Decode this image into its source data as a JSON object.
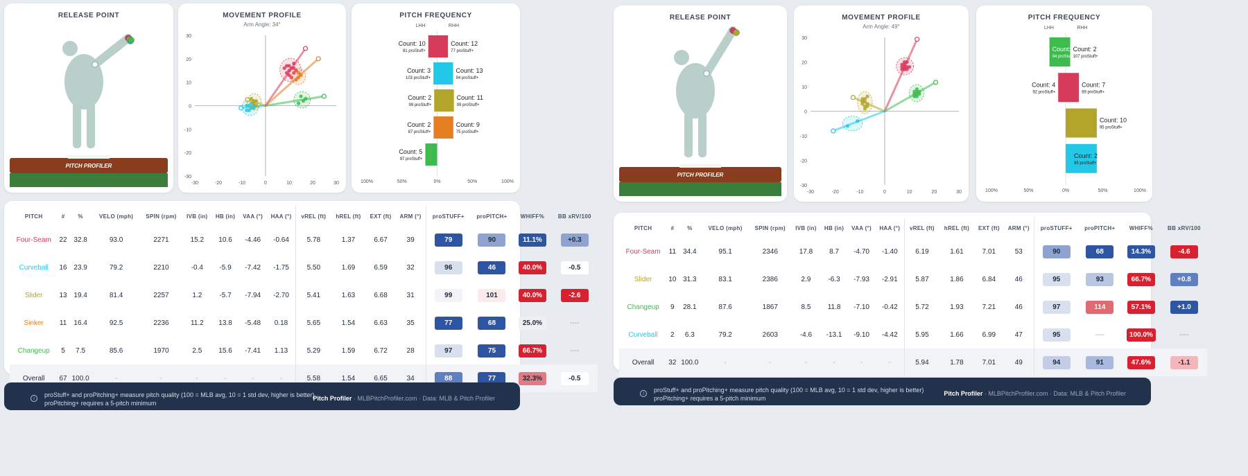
{
  "colors": {
    "Four-Seam": "#d63b5b",
    "Curveball": "#22c8e6",
    "Slider": "#b3a52a",
    "Sinker": "#e67e22",
    "Changeup": "#3dbb4f",
    "navy": "#22324d"
  },
  "panels": [
    {
      "release": {
        "title": "RELEASE POINT",
        "logo": "PITCH PROFILER"
      },
      "movement": {
        "title": "MOVEMENT PROFILE",
        "subtitle": "Arm Angle: 34°"
      },
      "frequency": {
        "title": "PITCH FREQUENCY",
        "lhh": "LHH",
        "rhh": "RHH"
      },
      "chart_data": [
        {
          "type": "scatter",
          "title": "MOVEMENT PROFILE",
          "subtitle": "Arm Angle: 34°",
          "xlim": [
            -30,
            30
          ],
          "ylim": [
            -30,
            30
          ],
          "x_ticks": [
            "-30",
            "-20",
            "-10",
            "0",
            "10",
            "20",
            "30"
          ],
          "y_ticks": [
            "30",
            "20",
            "10",
            "0",
            "-10",
            "-20",
            "-30"
          ],
          "series": [
            {
              "name": "Four-Seam",
              "points": [
                [
                  9,
                  17
                ],
                [
                  10,
                  15
                ],
                [
                  11,
                  16
                ],
                [
                  12,
                  14
                ],
                [
                  10,
                  13
                ],
                [
                  8,
                  16
                ],
                [
                  12,
                  18
                ],
                [
                  9,
                  14
                ],
                [
                  11,
                  12
                ],
                [
                  13,
                  15
                ],
                [
                  10,
                  17
                ],
                [
                  12,
                  16
                ]
              ]
            },
            {
              "name": "Curveball",
              "points": [
                [
                  -7,
                  0
                ],
                [
                  -6,
                  -1
                ],
                [
                  -8,
                  -2
                ],
                [
                  -5,
                  0
                ],
                [
                  -6,
                  1
                ],
                [
                  -7,
                  -2
                ],
                [
                  -5,
                  -1
                ],
                [
                  -8,
                  0
                ]
              ]
            },
            {
              "name": "Slider",
              "points": [
                [
                  -5,
                  1
                ],
                [
                  -4,
                  2
                ],
                [
                  -6,
                  3
                ],
                [
                  -4,
                  0
                ],
                [
                  -5,
                  2
                ]
              ]
            },
            {
              "name": "Sinker",
              "points": [
                [
                  14,
                  12
                ],
                [
                  15,
                  13
                ],
                [
                  13,
                  11
                ],
                [
                  14,
                  14
                ]
              ]
            },
            {
              "name": "Changeup",
              "points": [
                [
                  15,
                  4
                ],
                [
                  16,
                  2
                ],
                [
                  14,
                  1
                ],
                [
                  17,
                  3
                ]
              ]
            }
          ]
        },
        {
          "type": "bar",
          "title": "PITCH FREQUENCY",
          "x_ticks": [
            "100%",
            "50%",
            "0%",
            "50%",
            "100%"
          ],
          "pitches": [
            {
              "name": "Four-Seam",
              "lhh_pct": 45,
              "rhh_pct": 55,
              "lhh_count": "Count: 10",
              "rhh_count": "Count: 12",
              "lhh_stuff": "81 proStuff+",
              "rhh_stuff": "77 proStuff+"
            },
            {
              "name": "Curveball",
              "lhh_pct": 19,
              "rhh_pct": 81,
              "lhh_count": "Count: 3",
              "rhh_count": "Count: 13",
              "lhh_stuff": "103 proStuff+",
              "rhh_stuff": "94 proStuff+"
            },
            {
              "name": "Slider",
              "lhh_pct": 15,
              "rhh_pct": 85,
              "lhh_count": "Count: 2",
              "rhh_count": "Count: 11",
              "lhh_stuff": "99 proStuff+",
              "rhh_stuff": "99 proStuff+"
            },
            {
              "name": "Sinker",
              "lhh_pct": 18,
              "rhh_pct": 82,
              "lhh_count": "Count: 2",
              "rhh_count": "Count: 9",
              "lhh_stuff": "87 proStuff+",
              "rhh_stuff": "75 proStuff+"
            },
            {
              "name": "Changeup",
              "lhh_pct": 100,
              "rhh_pct": 0,
              "lhh_count": "Count: 5",
              "rhh_count": "",
              "lhh_stuff": "97 proStuff+",
              "rhh_stuff": ""
            }
          ]
        }
      ],
      "table": {
        "headers": [
          "PITCH",
          "#",
          "%",
          "VELO (mph)",
          "SPIN (rpm)",
          "IVB (in)",
          "HB (in)",
          "VAA (°)",
          "HAA (°)",
          "vREL (ft)",
          "hREL (ft)",
          "EXT (ft)",
          "ARM (°)",
          "proSTUFF+",
          "proPITCH+",
          "WHIFF%",
          "BB xRV/100"
        ],
        "rows": [
          {
            "name": "Four-Seam",
            "cells": [
              "22",
              "32.8",
              "93.0",
              "2271",
              "15.2",
              "10.6",
              "-4.46",
              "-0.64",
              "5.78",
              "1.37",
              "6.67",
              "39"
            ],
            "stuff": "79",
            "pitch": "90",
            "whiff": "11.1%",
            "bb": "+0.3",
            "stuff_bg": "#2d55a2",
            "pitch_bg": "#8ea3cf",
            "whiff_bg": "#2d55a2",
            "bb_bg": "#8ea3cf"
          },
          {
            "name": "Curveball",
            "cells": [
              "16",
              "23.9",
              "79.2",
              "2210",
              "-0.4",
              "-5.9",
              "-7.42",
              "-1.75",
              "5.50",
              "1.69",
              "6.59",
              "32"
            ],
            "stuff": "96",
            "pitch": "46",
            "whiff": "40.0%",
            "bb": "-0.5",
            "stuff_bg": "#d8dfee",
            "pitch_bg": "#2d55a2",
            "whiff_bg": "#d62230",
            "bb_bg": "#ffffff"
          },
          {
            "name": "Slider",
            "cells": [
              "13",
              "19.4",
              "81.4",
              "2257",
              "1.2",
              "-5.7",
              "-7.94",
              "-2.70",
              "5.41",
              "1.63",
              "6.68",
              "31"
            ],
            "stuff": "99",
            "pitch": "101",
            "whiff": "40.0%",
            "bb": "-2.6",
            "stuff_bg": "#f3f4f7",
            "pitch_bg": "#fbeceb",
            "whiff_bg": "#d62230",
            "bb_bg": "#d62230"
          },
          {
            "name": "Sinker",
            "cells": [
              "11",
              "16.4",
              "92.5",
              "2236",
              "11.2",
              "13.8",
              "-5.48",
              "0.18",
              "5.65",
              "1.54",
              "6.63",
              "35"
            ],
            "stuff": "77",
            "pitch": "68",
            "whiff": "25.0%",
            "bb": "----",
            "stuff_bg": "#2d55a2",
            "pitch_bg": "#2d55a2",
            "whiff_bg": "#eef0f4",
            "bb_bg": "transparent"
          },
          {
            "name": "Changeup",
            "cells": [
              "5",
              "7.5",
              "85.6",
              "1970",
              "2.5",
              "15.6",
              "-7.41",
              "1.13",
              "5.29",
              "1.59",
              "6.72",
              "28"
            ],
            "stuff": "97",
            "pitch": "75",
            "whiff": "66.7%",
            "bb": "----",
            "stuff_bg": "#d8dfee",
            "pitch_bg": "#2d55a2",
            "whiff_bg": "#d62230",
            "bb_bg": "transparent"
          }
        ],
        "overall": {
          "name": "Overall",
          "cells": [
            "67",
            "100.0",
            "-",
            "-",
            "-",
            "-",
            "-",
            "-",
            "5.58",
            "1.54",
            "6.65",
            "34"
          ],
          "stuff": "88",
          "pitch": "77",
          "whiff": "32.3%",
          "bb": "-0.5",
          "stuff_bg": "#5f7fbf",
          "pitch_bg": "#2d55a2",
          "whiff_bg": "#e07a84",
          "bb_bg": "#ffffff"
        }
      },
      "footer": {
        "note1": "proStuff+ and proPitching+ measure pitch quality (100 = MLB avg, 10 = 1 std dev, higher is better)",
        "note2": "proPitching+ requires a 5-pitch minimum",
        "brand": "Pitch Profiler",
        "site": "MLBPitchProfiler.com",
        "data_src": "Data: MLB & Pitch Profiler",
        "dot": "·"
      }
    },
    {
      "release": {
        "title": "RELEASE POINT",
        "logo": "PITCH PROFILER"
      },
      "movement": {
        "title": "MOVEMENT PROFILE",
        "subtitle": "Arm Angle: 49°"
      },
      "frequency": {
        "title": "PITCH FREQUENCY",
        "lhh": "LHH",
        "rhh": "RHH"
      },
      "chart_data": [
        {
          "type": "scatter",
          "title": "MOVEMENT PROFILE",
          "subtitle": "Arm Angle: 49°",
          "xlim": [
            -30,
            30
          ],
          "ylim": [
            -30,
            30
          ],
          "x_ticks": [
            "-30",
            "-20",
            "-10",
            "0",
            "10",
            "20",
            "30"
          ],
          "y_ticks": [
            "30",
            "20",
            "10",
            "0",
            "-10",
            "-20",
            "-30"
          ],
          "series": [
            {
              "name": "Four-Seam",
              "points": [
                [
                  7,
                  19
                ],
                [
                  8,
                  18
                ],
                [
                  9,
                  20
                ],
                [
                  8,
                  17
                ],
                [
                  7,
                  17
                ],
                [
                  9,
                  18
                ],
                [
                  8,
                  19
                ],
                [
                  10,
                  18
                ],
                [
                  7,
                  18
                ],
                [
                  8,
                  20
                ],
                [
                  9,
                  17
                ]
              ]
            },
            {
              "name": "Slider",
              "points": [
                [
                  -8,
                  4
                ],
                [
                  -7,
                  2
                ],
                [
                  -9,
                  5
                ],
                [
                  -8,
                  1
                ],
                [
                  -7,
                  6
                ],
                [
                  -9,
                  3
                ],
                [
                  -8,
                  5
                ],
                [
                  -7,
                  3
                ],
                [
                  -8,
                  2
                ],
                [
                  -9,
                  4
                ]
              ]
            },
            {
              "name": "Changeup",
              "points": [
                [
                  12,
                  8
                ],
                [
                  13,
                  7
                ],
                [
                  13,
                  9
                ],
                [
                  12,
                  6
                ],
                [
                  14,
                  8
                ],
                [
                  12,
                  7
                ],
                [
                  13,
                  8
                ],
                [
                  14,
                  7
                ],
                [
                  13,
                  6
                ]
              ]
            },
            {
              "name": "Curveball",
              "points": [
                [
                  -11,
                  -4
                ],
                [
                  -15,
                  -6
                ]
              ]
            }
          ]
        },
        {
          "type": "bar",
          "title": "PITCH FREQUENCY",
          "x_ticks": [
            "100%",
            "50%",
            "0%",
            "50%",
            "100%"
          ],
          "pitches": [
            {
              "name": "Changeup",
              "lhh_pct": 78,
              "rhh_pct": 22,
              "lhh_count": "Count: 7",
              "rhh_count": "Count: 2",
              "lhh_stuff": "94 proStuff+",
              "rhh_stuff": "107 proStuff+",
              "lhh_inside": true
            },
            {
              "name": "Four-Seam",
              "lhh_pct": 36,
              "rhh_pct": 64,
              "lhh_count": "Count: 4",
              "rhh_count": "Count: 7",
              "lhh_stuff": "92 proStuff+",
              "rhh_stuff": "89 proStuff+"
            },
            {
              "name": "Slider",
              "lhh_pct": 0,
              "rhh_pct": 100,
              "lhh_count": "",
              "rhh_count": "Count: 10",
              "lhh_stuff": "",
              "rhh_stuff": "95 proStuff+"
            },
            {
              "name": "Curveball",
              "lhh_pct": 0,
              "rhh_pct": 100,
              "lhh_count": "",
              "rhh_count": "Count: 2",
              "lhh_stuff": "",
              "rhh_stuff": "95 proStuff+",
              "rhh_inside": true
            }
          ]
        }
      ],
      "table": {
        "headers": [
          "PITCH",
          "#",
          "%",
          "VELO (mph)",
          "SPIN (rpm)",
          "IVB (in)",
          "HB (in)",
          "VAA (°)",
          "HAA (°)",
          "vREL (ft)",
          "hREL (ft)",
          "EXT (ft)",
          "ARM (°)",
          "proSTUFF+",
          "proPITCH+",
          "WHIFF%",
          "BB xRV/100"
        ],
        "rows": [
          {
            "name": "Four-Seam",
            "cells": [
              "11",
              "34.4",
              "95.1",
              "2346",
              "17.8",
              "8.7",
              "-4.70",
              "-1.40",
              "6.19",
              "1.61",
              "7.01",
              "53"
            ],
            "stuff": "90",
            "pitch": "68",
            "whiff": "14.3%",
            "bb": "-4.6",
            "stuff_bg": "#8ea3cf",
            "pitch_bg": "#2d55a2",
            "whiff_bg": "#2d55a2",
            "bb_bg": "#d62230"
          },
          {
            "name": "Slider",
            "cells": [
              "10",
              "31.3",
              "83.1",
              "2386",
              "2.9",
              "-6.3",
              "-7.93",
              "-2.91",
              "5.87",
              "1.86",
              "6.84",
              "46"
            ],
            "stuff": "95",
            "pitch": "93",
            "whiff": "66.7%",
            "bb": "+0.8",
            "stuff_bg": "#d8dfee",
            "pitch_bg": "#b9c6e2",
            "whiff_bg": "#d62230",
            "bb_bg": "#5f7fbf"
          },
          {
            "name": "Changeup",
            "cells": [
              "9",
              "28.1",
              "87.6",
              "1867",
              "8.5",
              "11.8",
              "-7.10",
              "-0.42",
              "5.72",
              "1.93",
              "7.21",
              "46"
            ],
            "stuff": "97",
            "pitch": "114",
            "whiff": "57.1%",
            "bb": "+1.0",
            "stuff_bg": "#d8dfee",
            "pitch_bg": "#e06a72",
            "whiff_bg": "#d62230",
            "bb_bg": "#2d55a2"
          },
          {
            "name": "Curveball",
            "cells": [
              "2",
              "6.3",
              "79.2",
              "2603",
              "-4.6",
              "-13.1",
              "-9.10",
              "-4.42",
              "5.95",
              "1.66",
              "6.99",
              "47"
            ],
            "stuff": "95",
            "pitch": "----",
            "whiff": "100.0%",
            "bb": "----",
            "stuff_bg": "#d8dfee",
            "pitch_bg": "transparent",
            "whiff_bg": "#d62230",
            "bb_bg": "transparent"
          }
        ],
        "overall": {
          "name": "Overall",
          "cells": [
            "32",
            "100.0",
            "-",
            "-",
            "-",
            "-",
            "-",
            "-",
            "5.94",
            "1.78",
            "7.01",
            "49"
          ],
          "stuff": "94",
          "pitch": "91",
          "whiff": "47.6%",
          "bb": "-1.1",
          "stuff_bg": "#c3cde6",
          "pitch_bg": "#a9b8dc",
          "whiff_bg": "#d62230",
          "bb_bg": "#f3b6bb"
        }
      },
      "footer": {
        "note1": "proStuff+ and proPitching+ measure pitch quality (100 = MLB avg, 10 = 1 std dev, higher is better)",
        "note2": "proPitching+ requires a 5-pitch minimum",
        "brand": "Pitch Profiler",
        "site": "MLBPitchProfiler.com",
        "data_src": "Data: MLB & Pitch Profiler",
        "dot": "·"
      }
    }
  ]
}
